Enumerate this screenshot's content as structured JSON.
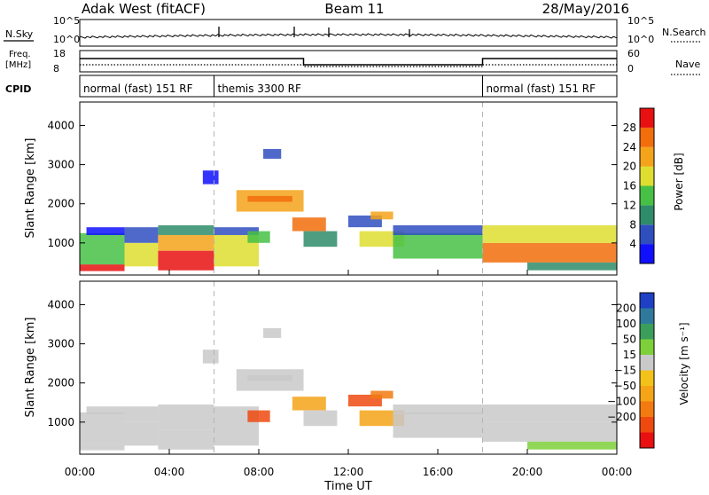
{
  "header": {
    "station": "Adak West (fitACF)",
    "beam": "Beam 11",
    "date": "28/May/2016"
  },
  "left_labels": {
    "nsky": "N.Sky",
    "freq_line1": "Freq.",
    "freq_line2": "[MHz]",
    "cpid": "CPID"
  },
  "right_labels": {
    "nsearch": "N.Search",
    "nave": "Nave"
  },
  "noise_axes": {
    "left_top": "10^5",
    "left_bottom": "10^0",
    "right_top": "10^5",
    "right_bottom": "10^0"
  },
  "freq_axes": {
    "left_top": "18",
    "left_bottom": "8",
    "right_top": "60",
    "right_bottom": "0"
  },
  "cpid_segments": [
    {
      "label": "normal (fast) 151 RF",
      "start_hour": 0,
      "end_hour": 6
    },
    {
      "label": "themis 3300 RF",
      "start_hour": 6,
      "end_hour": 18
    },
    {
      "label": "normal (fast) 151 RF",
      "start_hour": 18,
      "end_hour": 24
    }
  ],
  "chart_data": [
    {
      "type": "heatmap",
      "quantity": "power",
      "ylabel": "Slant Range [km]",
      "yticks": [
        "1000",
        "2000",
        "3000",
        "4000"
      ],
      "ylim": [
        180,
        4600
      ],
      "xlim": [
        0,
        24
      ],
      "colorbar_label": "Power [dB]",
      "colorbar_ticks": [
        "4",
        "8",
        "12",
        "16",
        "20",
        "24",
        "28"
      ],
      "colorbar_range": [
        0,
        32
      ],
      "colorbar_colors": [
        "#1010ff",
        "#2f4fbf",
        "#2f8c6a",
        "#47c145",
        "#dede30",
        "#f4a31a",
        "#f26d0c",
        "#e81010"
      ]
    },
    {
      "type": "heatmap",
      "quantity": "velocity",
      "ylabel": "Slant Range [km]",
      "yticks": [
        "1000",
        "2000",
        "3000",
        "4000"
      ],
      "ylim": [
        180,
        4600
      ],
      "xlim": [
        0,
        24
      ],
      "colorbar_label": "Velocity [m s⁻¹]",
      "colorbar_ticks": [
        "200",
        "100",
        "50",
        "15",
        "−15",
        "−50",
        "−100",
        "−200"
      ],
      "colorbar_colors": [
        "#1f3fc4",
        "#2f7a9c",
        "#3b9e5a",
        "#7ed03a",
        "#c9c9c9",
        "#f2c21a",
        "#f5a317",
        "#f27a10",
        "#ee4a10",
        "#e81010"
      ]
    }
  ],
  "time_axis": {
    "ticks": [
      "00:00",
      "04:00",
      "08:00",
      "12:00",
      "16:00",
      "20:00",
      "00:00"
    ],
    "label": "Time UT"
  }
}
